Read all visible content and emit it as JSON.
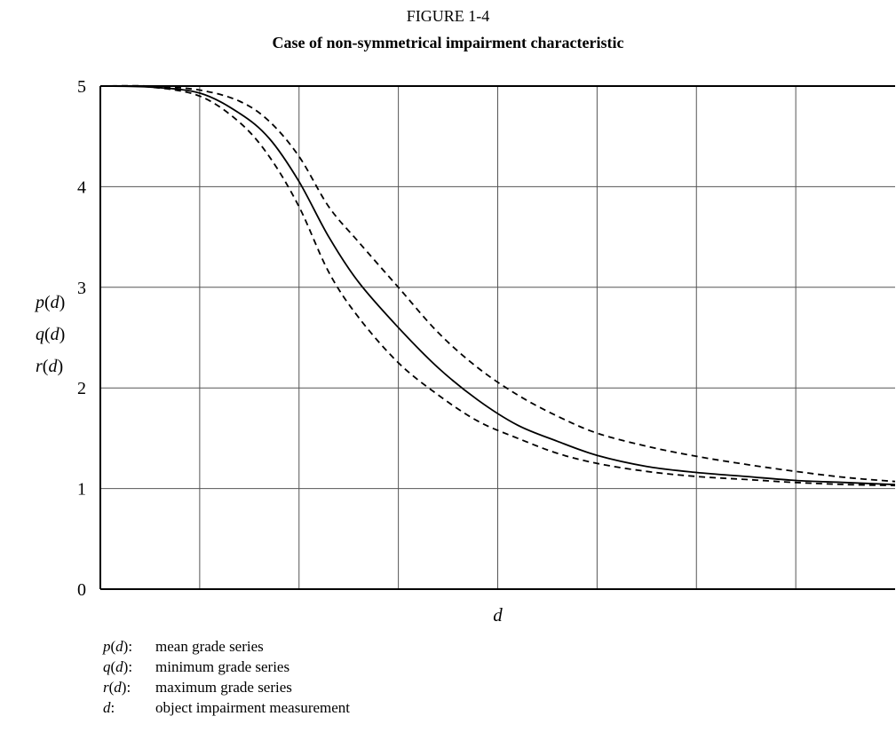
{
  "figure": {
    "label": "FIGURE 1-4",
    "title": "Case of non-symmetrical impairment characteristic"
  },
  "chart_data": {
    "type": "line",
    "title": "Case of non-symmetrical impairment characteristic",
    "xlabel": "d",
    "ylabel_lines": [
      {
        "fn": "p",
        "arg": "d"
      },
      {
        "fn": "q",
        "arg": "d"
      },
      {
        "fn": "r",
        "arg": "d"
      }
    ],
    "xlim": [
      0,
      8
    ],
    "ylim": [
      0,
      5
    ],
    "y_ticks": [
      "0",
      "1",
      "2",
      "3",
      "4",
      "5"
    ],
    "x_gridlines": [
      1,
      2,
      3,
      4,
      5,
      6,
      7
    ],
    "grid": true,
    "legend": "none",
    "series": [
      {
        "name": "p(d)",
        "style": "solid",
        "x": [
          0,
          0.5,
          1,
          1.4,
          1.7,
          2,
          2.3,
          2.6,
          3,
          3.4,
          3.8,
          4.2,
          4.6,
          5,
          5.5,
          6,
          6.5,
          7,
          7.5,
          8
        ],
        "y": [
          5,
          4.99,
          4.93,
          4.73,
          4.48,
          4.05,
          3.5,
          3.05,
          2.6,
          2.2,
          1.88,
          1.63,
          1.47,
          1.33,
          1.22,
          1.16,
          1.12,
          1.08,
          1.06,
          1.04
        ]
      },
      {
        "name": "q(d)",
        "style": "dashed",
        "x": [
          0,
          0.5,
          1,
          1.4,
          1.7,
          2,
          2.3,
          2.6,
          3,
          3.4,
          3.8,
          4.2,
          4.6,
          5,
          5.5,
          6,
          6.5,
          7,
          7.5,
          8
        ],
        "y": [
          5,
          4.99,
          4.9,
          4.64,
          4.3,
          3.8,
          3.15,
          2.7,
          2.25,
          1.93,
          1.67,
          1.5,
          1.35,
          1.25,
          1.17,
          1.12,
          1.09,
          1.06,
          1.04,
          1.03
        ]
      },
      {
        "name": "r(d)",
        "style": "dashed",
        "x": [
          0,
          0.5,
          1,
          1.4,
          1.7,
          2,
          2.3,
          2.6,
          3,
          3.4,
          3.8,
          4.2,
          4.6,
          5,
          5.5,
          6,
          6.5,
          7,
          7.5,
          8
        ],
        "y": [
          5,
          5,
          4.96,
          4.85,
          4.65,
          4.3,
          3.8,
          3.45,
          3.0,
          2.55,
          2.2,
          1.93,
          1.72,
          1.55,
          1.42,
          1.32,
          1.24,
          1.17,
          1.11,
          1.07
        ]
      }
    ]
  },
  "notes": [
    {
      "fn": "p",
      "arg": "d",
      "text": "mean grade series"
    },
    {
      "fn": "q",
      "arg": "d",
      "text": "minimum grade series"
    },
    {
      "fn": "r",
      "arg": "d",
      "text": "maximum grade series"
    },
    {
      "fn": "d",
      "arg": "",
      "text": "object impairment measurement"
    }
  ]
}
